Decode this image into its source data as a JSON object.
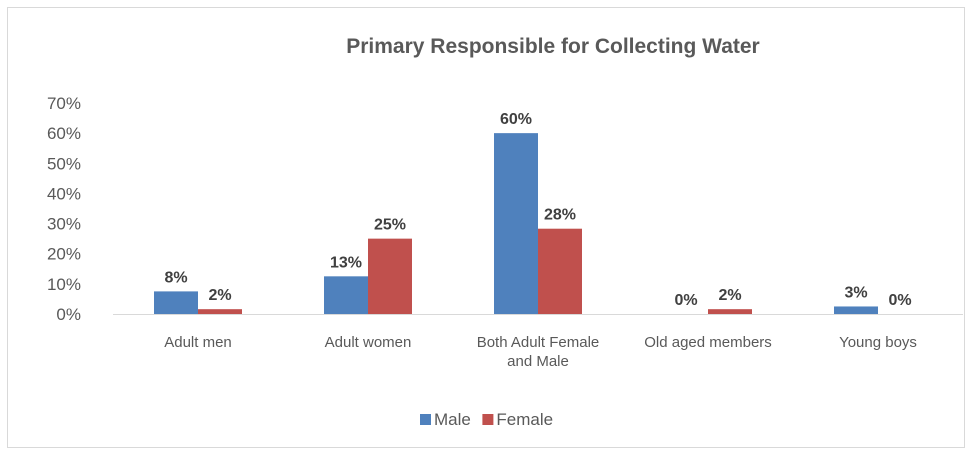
{
  "chart_data": {
    "type": "bar",
    "title": "Primary Responsible for Collecting Water",
    "xlabel": "",
    "ylabel": "",
    "ylim": [
      0,
      70
    ],
    "yticks": [
      "0%",
      "10%",
      "20%",
      "30%",
      "40%",
      "50%",
      "60%",
      "70%"
    ],
    "categories": [
      [
        "Adult men"
      ],
      [
        "Adult women"
      ],
      [
        "Both Adult Female",
        "and Male"
      ],
      [
        "Old aged members"
      ],
      [
        "Young boys"
      ]
    ],
    "series": [
      {
        "name": "Male",
        "color": "#4f81bd",
        "values": [
          7.5,
          12.5,
          60,
          0,
          2.5
        ],
        "labels": [
          "8%",
          "13%",
          "60%",
          "0%",
          "3%"
        ]
      },
      {
        "name": "Female",
        "color": "#c0504d",
        "values": [
          1.6,
          25,
          28.3,
          1.6,
          0
        ],
        "labels": [
          "2%",
          "25%",
          "28%",
          "2%",
          "0%"
        ]
      }
    ],
    "grid": false,
    "legend": "bottom"
  }
}
